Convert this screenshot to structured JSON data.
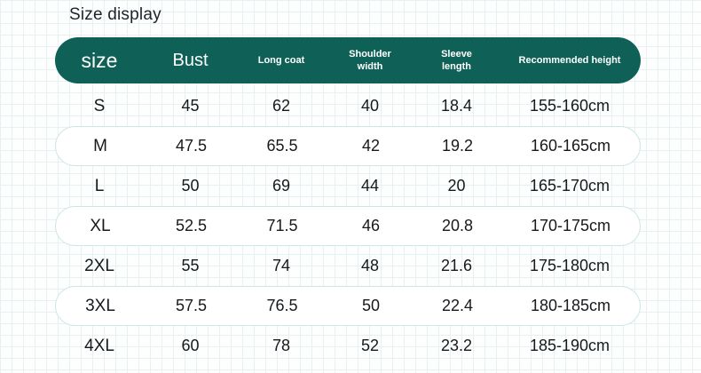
{
  "title": "Size display",
  "colors": {
    "header_bg": "#0f6157",
    "header_text": "#ffffff",
    "highlight_row_border": "#cfe6e8",
    "grid_line": "#eaf0f1",
    "body_text": "#16191c"
  },
  "chart_data": {
    "type": "table",
    "title": "Size display",
    "columns": [
      "size",
      "Bust",
      "Long coat",
      "Shoulder width",
      "Sleeve length",
      "Recommended height"
    ],
    "rows": [
      [
        "S",
        "45",
        "62",
        "40",
        "18.4",
        "155-160cm"
      ],
      [
        "M",
        "47.5",
        "65.5",
        "42",
        "19.2",
        "160-165cm"
      ],
      [
        "L",
        "50",
        "69",
        "44",
        "20",
        "165-170cm"
      ],
      [
        "XL",
        "52.5",
        "71.5",
        "46",
        "20.8",
        "170-175cm"
      ],
      [
        "2XL",
        "55",
        "74",
        "48",
        "21.6",
        "175-180cm"
      ],
      [
        "3XL",
        "57.5",
        "76.5",
        "50",
        "22.4",
        "180-185cm"
      ],
      [
        "4XL",
        "60",
        "78",
        "52",
        "23.2",
        "185-190cm"
      ]
    ],
    "highlighted_rows": [
      "M",
      "XL",
      "3XL"
    ],
    "layout": {
      "header_style": "dark-teal pill",
      "highlight_style": "white pill with light border",
      "background": "graph-paper grid"
    }
  }
}
